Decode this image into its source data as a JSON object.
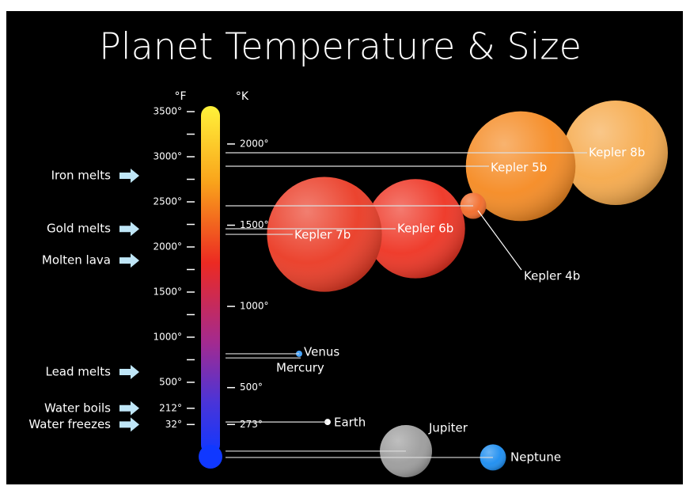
{
  "chart_data": {
    "type": "bubble",
    "title": "Planet Temperature & Size",
    "y_label": "°F",
    "y2_label": "°K",
    "ylim": [
      -360,
      3530
    ],
    "yticks": [
      {
        "value": 3500,
        "label": "3500°"
      },
      {
        "value": 3000,
        "label": "3000°"
      },
      {
        "value": 2500,
        "label": "2500°"
      },
      {
        "value": 2000,
        "label": "2000°"
      },
      {
        "value": 1500,
        "label": "1500°"
      },
      {
        "value": 1000,
        "label": "1000°"
      },
      {
        "value": 500,
        "label": "500°"
      },
      {
        "value": 212,
        "label": "212°"
      },
      {
        "value": 32,
        "label": "32°"
      }
    ],
    "yticks_minor": [
      3250,
      2750,
      2250,
      1750,
      1250,
      750
    ],
    "y2lim": [
      55,
      2216
    ],
    "y2ticks": [
      {
        "value": 2000,
        "label": "2000°"
      },
      {
        "value": 1500,
        "label": "1500°"
      },
      {
        "value": 1000,
        "label": "1000°"
      },
      {
        "value": 500,
        "label": "500°"
      },
      {
        "value": 273,
        "label": "273°"
      }
    ],
    "annotations": [
      {
        "label": "Iron melts",
        "value": 2790
      },
      {
        "label": "Gold melts",
        "value": 2200
      },
      {
        "label": "Molten lava",
        "value": 1850
      },
      {
        "label": "Lead melts",
        "value": 614
      },
      {
        "label": "Water boils",
        "value": 212
      },
      {
        "label": "Water freezes",
        "value": 32
      }
    ],
    "planets": [
      {
        "name": "Kepler 8b",
        "temp": 3044,
        "size": 2.0,
        "color": "#f6a94a"
      },
      {
        "name": "Kepler 5b",
        "temp": 2895,
        "size": 2.1,
        "color": "#f58a22"
      },
      {
        "name": "Kepler 4b",
        "temp": 2456,
        "size": 0.5,
        "color": "#f26a28"
      },
      {
        "name": "Kepler 6b",
        "temp": 2202,
        "size": 1.9,
        "color": "#ee3322"
      },
      {
        "name": "Kepler 7b",
        "temp": 2140,
        "size": 2.2,
        "color": "#ea3a24"
      },
      {
        "name": "Venus",
        "temp": 816,
        "size": 0.12,
        "color": "#4aa6ff"
      },
      {
        "name": "Mercury",
        "temp": 770,
        "size": null,
        "color": "#ffffff"
      },
      {
        "name": "Earth",
        "temp": 60,
        "size": 0.12,
        "color": "#ffffff"
      },
      {
        "name": "Jupiter",
        "temp": -263,
        "size": 1.0,
        "color": "#9c9c9c"
      },
      {
        "name": "Neptune",
        "temp": -333,
        "size": 0.5,
        "color": "#1a8cf0"
      }
    ]
  }
}
